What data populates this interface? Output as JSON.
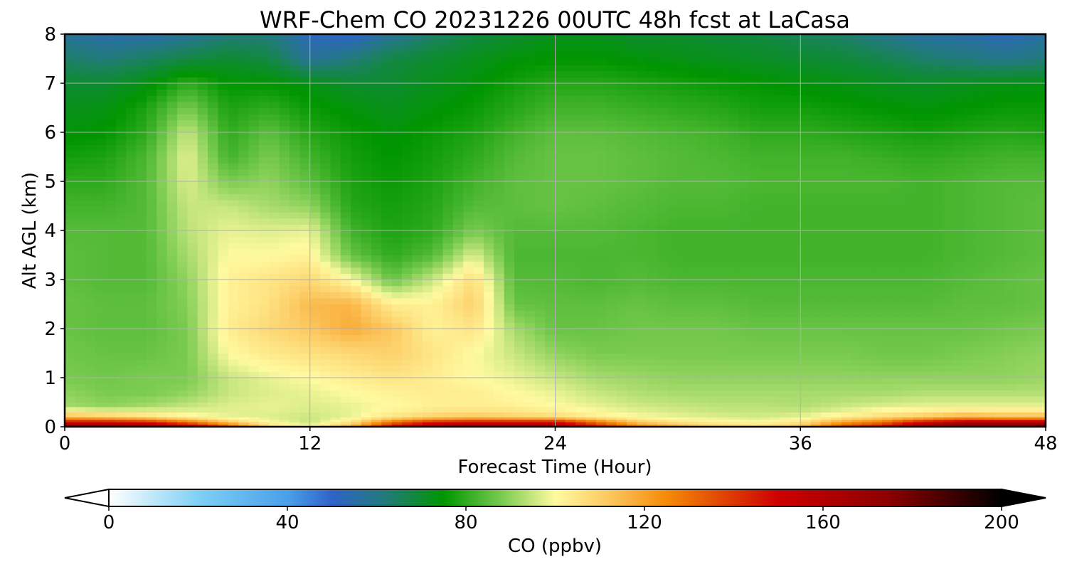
{
  "chart_data": {
    "type": "heatmap",
    "title": "WRF-Chem CO  20231226 00UTC 48h fcst at LaCasa",
    "xlabel": "Forecast Time (Hour)",
    "ylabel": "Alt AGL (km)",
    "xlim": [
      0,
      48
    ],
    "ylim": [
      0,
      8
    ],
    "xticks": [
      0,
      12,
      24,
      36,
      48
    ],
    "yticks": [
      0,
      1,
      2,
      3,
      4,
      5,
      6,
      7,
      8
    ],
    "grid": true,
    "colorbar": {
      "label": "CO  (ppbv)",
      "range": [
        0,
        200
      ],
      "ticks": [
        0,
        40,
        80,
        120,
        160,
        200
      ],
      "extend": "both",
      "placement": "bottom",
      "colors": [
        {
          "v": 0,
          "c": "#ffffff"
        },
        {
          "v": 20,
          "c": "#7fd0f5"
        },
        {
          "v": 40,
          "c": "#4aa0ea"
        },
        {
          "v": 50,
          "c": "#2f63c8"
        },
        {
          "v": 62,
          "c": "#227b7a"
        },
        {
          "v": 75,
          "c": "#009600"
        },
        {
          "v": 88,
          "c": "#7acb50"
        },
        {
          "v": 100,
          "c": "#fffaa0"
        },
        {
          "v": 112,
          "c": "#fcc860"
        },
        {
          "v": 125,
          "c": "#f58a08"
        },
        {
          "v": 150,
          "c": "#cd0000"
        },
        {
          "v": 175,
          "c": "#8b0000"
        },
        {
          "v": 200,
          "c": "#000000"
        }
      ]
    },
    "grid_hours": [
      0,
      2,
      4,
      6,
      8,
      10,
      12,
      14,
      16,
      18,
      20,
      22,
      24,
      26,
      28,
      30,
      32,
      34,
      36,
      38,
      40,
      42,
      44,
      46,
      48
    ],
    "grid_alt_km": [
      0,
      0.1,
      0.2,
      0.4,
      0.7,
      1.0,
      1.5,
      2.0,
      2.5,
      3.0,
      3.5,
      4.0,
      4.5,
      5.0,
      5.5,
      6.0,
      6.5,
      7.0,
      7.5,
      8.0
    ],
    "values_ppbv": [
      [
        185,
        180,
        178,
        165,
        140,
        110,
        100,
        120,
        150,
        170,
        175,
        175,
        170,
        150,
        130,
        120,
        112,
        110,
        115,
        140,
        150,
        175,
        185,
        185,
        185
      ],
      [
        150,
        150,
        145,
        130,
        112,
        100,
        95,
        105,
        130,
        145,
        150,
        150,
        150,
        130,
        112,
        105,
        102,
        100,
        105,
        120,
        130,
        150,
        160,
        160,
        160
      ],
      [
        115,
        112,
        108,
        102,
        98,
        97,
        95,
        98,
        105,
        110,
        112,
        110,
        108,
        103,
        100,
        98,
        97,
        96,
        98,
        103,
        108,
        112,
        118,
        115,
        115
      ],
      [
        92,
        90,
        92,
        95,
        97,
        98,
        97,
        98,
        100,
        102,
        103,
        102,
        100,
        98,
        96,
        95,
        94,
        94,
        93,
        95,
        97,
        98,
        98,
        98,
        98
      ],
      [
        90,
        88,
        88,
        90,
        95,
        97,
        98,
        100,
        102,
        103,
        103,
        100,
        98,
        95,
        93,
        92,
        92,
        92,
        92,
        92,
        92,
        93,
        93,
        93,
        93
      ],
      [
        88,
        87,
        88,
        88,
        95,
        98,
        100,
        103,
        105,
        103,
        100,
        98,
        95,
        92,
        91,
        90,
        90,
        90,
        90,
        90,
        90,
        90,
        90,
        90,
        91
      ],
      [
        87,
        86,
        86,
        88,
        100,
        104,
        106,
        108,
        110,
        105,
        100,
        95,
        90,
        88,
        88,
        88,
        88,
        88,
        88,
        88,
        87,
        87,
        88,
        89,
        90
      ],
      [
        86,
        85,
        85,
        88,
        103,
        108,
        112,
        118,
        112,
        102,
        105,
        92,
        86,
        86,
        87,
        87,
        87,
        86,
        86,
        86,
        86,
        86,
        86,
        87,
        88
      ],
      [
        86,
        85,
        85,
        89,
        102,
        106,
        115,
        116,
        103,
        102,
        110,
        86,
        85,
        85,
        86,
        85,
        85,
        84,
        84,
        84,
        84,
        84,
        85,
        85,
        86
      ],
      [
        85,
        84,
        84,
        90,
        102,
        105,
        108,
        100,
        86,
        95,
        107,
        84,
        84,
        83,
        84,
        83,
        83,
        83,
        83,
        83,
        83,
        83,
        84,
        85,
        86
      ],
      [
        85,
        84,
        84,
        92,
        100,
        100,
        102,
        86,
        80,
        84,
        97,
        83,
        83,
        83,
        83,
        82,
        82,
        82,
        82,
        82,
        82,
        82,
        83,
        84,
        85
      ],
      [
        84,
        84,
        84,
        94,
        98,
        97,
        98,
        82,
        78,
        80,
        88,
        84,
        84,
        84,
        83,
        82,
        82,
        82,
        82,
        82,
        82,
        82,
        83,
        84,
        85
      ],
      [
        82,
        82,
        84,
        95,
        95,
        92,
        90,
        79,
        77,
        79,
        84,
        85,
        86,
        85,
        84,
        83,
        83,
        82,
        82,
        82,
        82,
        82,
        83,
        84,
        85
      ],
      [
        80,
        80,
        84,
        97,
        88,
        90,
        85,
        78,
        76,
        78,
        82,
        85,
        86,
        86,
        85,
        84,
        84,
        83,
        83,
        83,
        83,
        82,
        83,
        84,
        84
      ],
      [
        77,
        78,
        83,
        98,
        82,
        88,
        82,
        77,
        75,
        77,
        80,
        84,
        86,
        86,
        85,
        84,
        83,
        82,
        82,
        82,
        81,
        80,
        81,
        82,
        82
      ],
      [
        74,
        75,
        80,
        95,
        80,
        85,
        79,
        76,
        74,
        76,
        78,
        82,
        85,
        85,
        84,
        83,
        82,
        80,
        80,
        79,
        78,
        77,
        78,
        79,
        78
      ],
      [
        72,
        73,
        78,
        88,
        78,
        80,
        76,
        74,
        72,
        74,
        76,
        79,
        82,
        82,
        81,
        80,
        79,
        77,
        77,
        76,
        75,
        74,
        75,
        76,
        76
      ],
      [
        70,
        70,
        73,
        80,
        75,
        75,
        73,
        70,
        70,
        72,
        74,
        77,
        79,
        79,
        78,
        77,
        76,
        75,
        74,
        73,
        72,
        71,
        72,
        73,
        73
      ],
      [
        64,
        62,
        65,
        68,
        70,
        68,
        58,
        62,
        68,
        70,
        72,
        74,
        75,
        75,
        74,
        73,
        72,
        71,
        70,
        69,
        67,
        64,
        62,
        60,
        62
      ],
      [
        58,
        55,
        55,
        58,
        62,
        62,
        52,
        50,
        58,
        64,
        68,
        70,
        72,
        72,
        70,
        70,
        69,
        68,
        66,
        64,
        60,
        56,
        55,
        53,
        56
      ]
    ]
  }
}
